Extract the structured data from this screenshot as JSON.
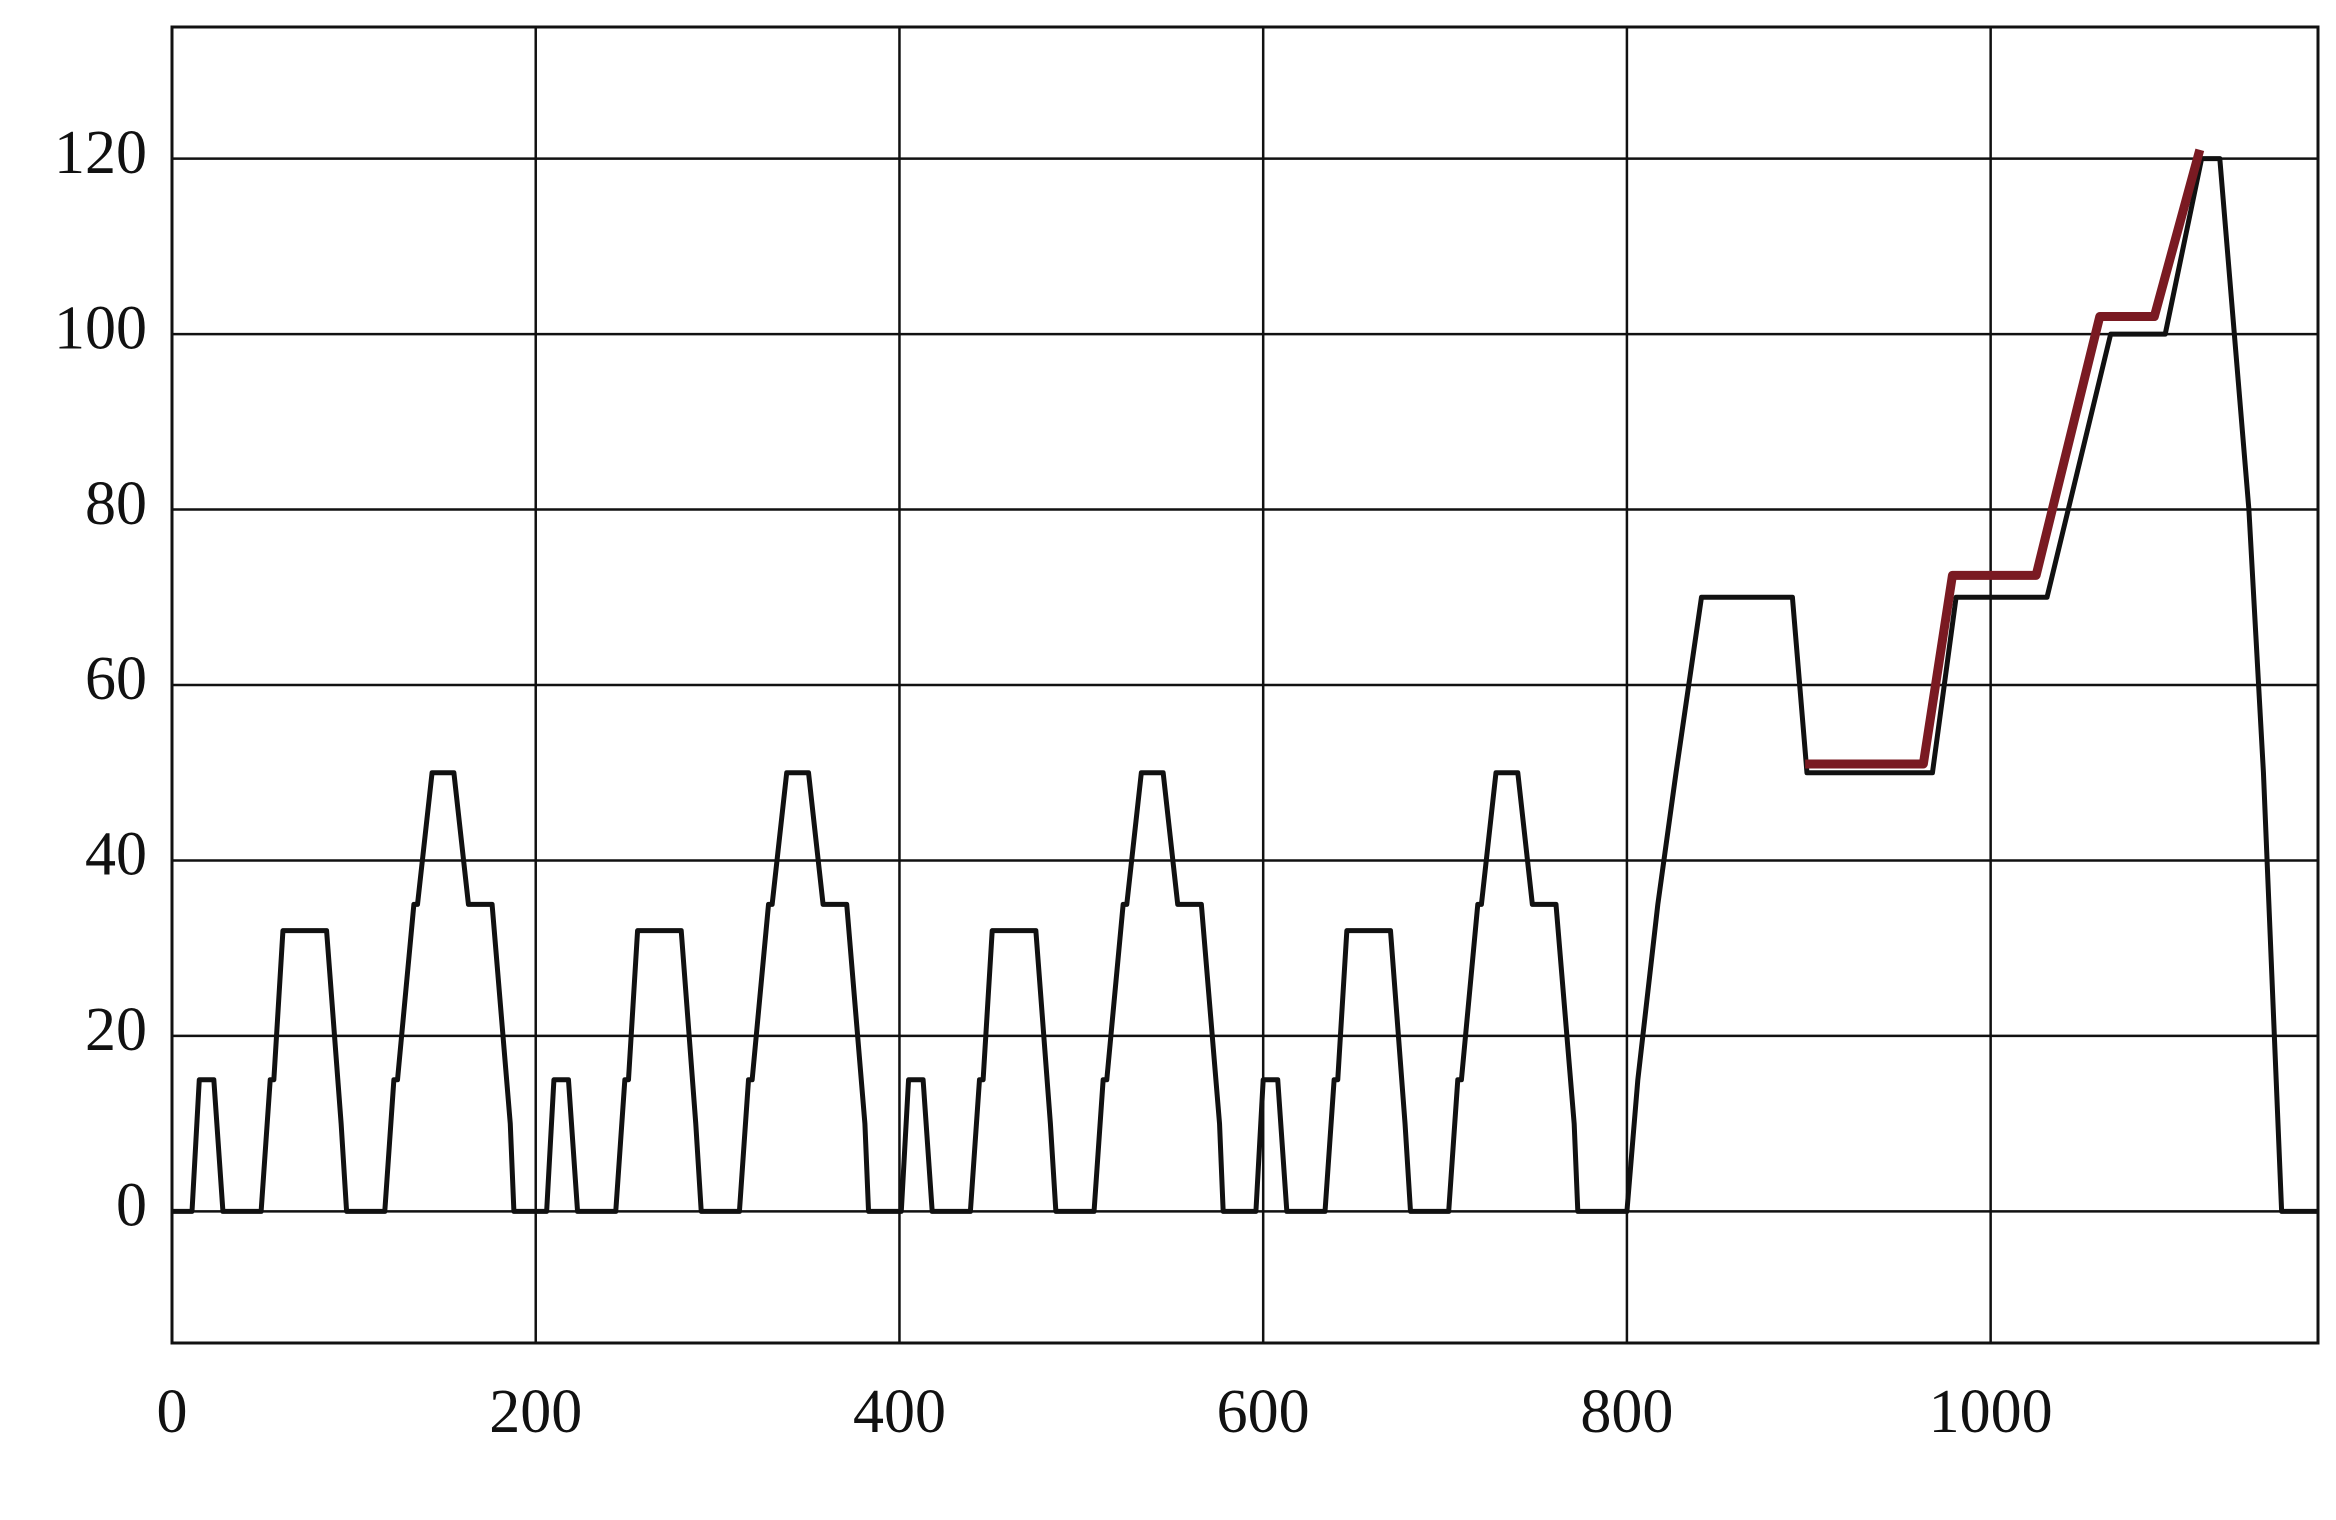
{
  "chart_data": {
    "type": "line",
    "xlim": [
      0,
      1180
    ],
    "ylim": [
      -15,
      135
    ],
    "xticks": [
      0,
      200,
      400,
      600,
      800,
      1000
    ],
    "yticks": [
      0,
      20,
      40,
      60,
      80,
      100,
      120
    ],
    "grid": true,
    "series": [
      {
        "color": "#111111",
        "x": [
          0,
          11,
          15,
          23,
          28,
          49,
          54,
          56,
          61,
          85,
          93,
          96,
          117,
          122,
          124,
          133,
          135,
          143,
          155,
          163,
          176,
          186,
          188,
          195,
          206,
          210,
          218,
          223,
          244,
          249,
          251,
          256,
          280,
          288,
          291,
          312,
          317,
          319,
          328,
          330,
          338,
          350,
          358,
          371,
          381,
          383,
          390,
          401,
          405,
          413,
          418,
          439,
          444,
          446,
          451,
          475,
          483,
          486,
          507,
          512,
          514,
          523,
          525,
          533,
          545,
          553,
          566,
          576,
          578,
          585,
          596,
          600,
          608,
          613,
          634,
          639,
          641,
          646,
          670,
          678,
          681,
          702,
          707,
          709,
          718,
          720,
          728,
          740,
          748,
          761,
          771,
          773,
          780,
          800,
          806,
          817,
          827,
          841,
          891,
          899,
          968,
          981,
          1031,
          1066,
          1096,
          1116,
          1126,
          1142,
          1150,
          1160,
          1180
        ],
        "values": [
          0,
          0,
          15,
          15,
          0,
          0,
          15,
          15,
          32,
          32,
          10,
          0,
          0,
          15,
          15,
          35,
          35,
          50,
          50,
          35,
          35,
          10,
          0,
          0,
          0,
          15,
          15,
          0,
          0,
          15,
          15,
          32,
          32,
          10,
          0,
          0,
          15,
          15,
          35,
          35,
          50,
          50,
          35,
          35,
          10,
          0,
          0,
          0,
          15,
          15,
          0,
          0,
          15,
          15,
          32,
          32,
          10,
          0,
          0,
          15,
          15,
          35,
          35,
          50,
          50,
          35,
          35,
          10,
          0,
          0,
          0,
          15,
          15,
          0,
          0,
          15,
          15,
          32,
          32,
          10,
          0,
          0,
          15,
          15,
          35,
          35,
          50,
          50,
          35,
          35,
          10,
          0,
          0,
          0,
          15,
          35,
          50,
          70,
          70,
          50,
          50,
          70,
          70,
          100,
          100,
          120,
          120,
          80,
          50,
          0,
          0
        ]
      },
      {
        "color": "#7a1a22",
        "x": [
          898,
          963,
          979,
          1025,
          1060,
          1090,
          1115
        ],
        "values": [
          51,
          51,
          72.5,
          72.5,
          102,
          102,
          121
        ]
      }
    ]
  }
}
